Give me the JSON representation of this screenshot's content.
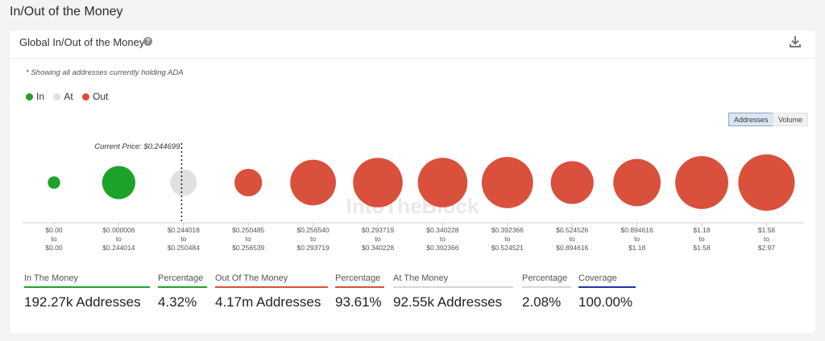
{
  "page": {
    "title": "In/Out of the Money"
  },
  "card": {
    "title": "Global In/Out of the Money",
    "help_icon": "question-circle-icon",
    "download_icon": "download-icon",
    "note": "* Showing all addresses currently holding ADA"
  },
  "legend": [
    {
      "label": "In",
      "color": "#1ea32a"
    },
    {
      "label": "At",
      "color": "#e0e0e0"
    },
    {
      "label": "Out",
      "color": "#d9503c"
    }
  ],
  "toggles": {
    "addresses": "Addresses",
    "volume": "Volume",
    "selected": "addresses"
  },
  "chart_data": {
    "type": "scatter",
    "current_price_label": "Current Price: $0.244699",
    "watermark": "IntoTheBlock",
    "categories": [
      {
        "from": "$0.00",
        "to": "$0.00",
        "status": "in",
        "relative_size": 0.22
      },
      {
        "from": "$0.000006",
        "to": "$0.244014",
        "status": "in",
        "relative_size": 0.59
      },
      {
        "from": "$0.244018",
        "to": "$0.250484",
        "status": "at",
        "relative_size": 0.47
      },
      {
        "from": "$0.250485",
        "to": "$0.256539",
        "status": "out",
        "relative_size": 0.49
      },
      {
        "from": "$0.256540",
        "to": "$0.293719",
        "status": "out",
        "relative_size": 0.81
      },
      {
        "from": "$0.293719",
        "to": "$0.340228",
        "status": "out",
        "relative_size": 0.88
      },
      {
        "from": "$0.340228",
        "to": "$0.392366",
        "status": "out",
        "relative_size": 0.88
      },
      {
        "from": "$0.392366",
        "to": "$0.524521",
        "status": "out",
        "relative_size": 0.91
      },
      {
        "from": "$0.524526",
        "to": "$0.894616",
        "status": "out",
        "relative_size": 0.76
      },
      {
        "from": "$0.894616",
        "to": "$1.18",
        "status": "out",
        "relative_size": 0.84
      },
      {
        "from": "$1.18",
        "to": "$1.58",
        "status": "out",
        "relative_size": 0.94
      },
      {
        "from": "$1.58",
        "to": "$2.97",
        "status": "out",
        "relative_size": 1.0
      }
    ],
    "to_word": "to",
    "current_price_after_index": 1
  },
  "stats": [
    {
      "label": "In The Money",
      "value": "192.27k Addresses",
      "color": "#1ea32a"
    },
    {
      "label": "Percentage",
      "value": "4.32%",
      "color": "#1ea32a"
    },
    {
      "label": "Out Of The Money",
      "value": "4.17m Addresses",
      "color": "#d9503c"
    },
    {
      "label": "Percentage",
      "value": "93.61%",
      "color": "#d9503c"
    },
    {
      "label": "At The Money",
      "value": "92.55k Addresses",
      "color": "#d6d6d6"
    },
    {
      "label": "Percentage",
      "value": "2.08%",
      "color": "#d6d6d6"
    },
    {
      "label": "Coverage",
      "value": "100.00%",
      "color": "#2233aa"
    }
  ]
}
